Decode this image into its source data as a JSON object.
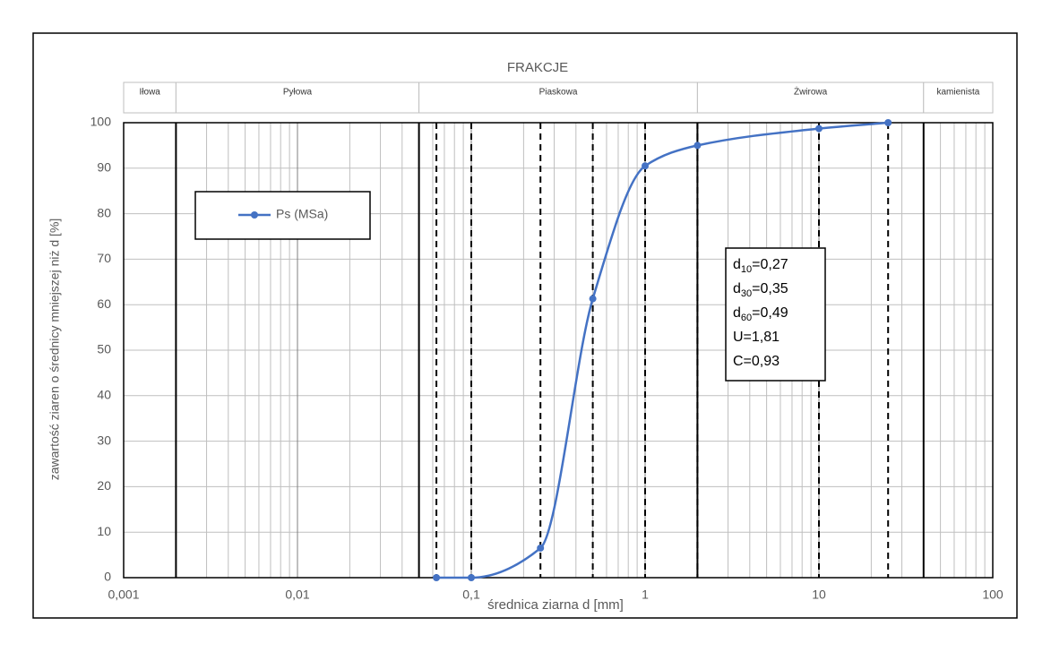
{
  "chart_data": {
    "type": "line",
    "x": [
      0.063,
      0.1,
      0.25,
      0.5,
      1,
      2,
      10,
      25
    ],
    "series": [
      {
        "name": "Ps (MSa)",
        "color": "#4472c4",
        "values": [
          0,
          0,
          6.5,
          61.3,
          90.5,
          95,
          98.7,
          100
        ]
      }
    ],
    "xlim": [
      0.001,
      100
    ],
    "log_x": true,
    "xticks": [
      {
        "value": 0.001,
        "label": "0,001"
      },
      {
        "value": 0.01,
        "label": "0,01"
      },
      {
        "value": 0.1,
        "label": "0,1"
      },
      1,
      10,
      100
    ],
    "ylim": [
      0,
      100
    ],
    "yticks": [
      0,
      10,
      20,
      30,
      40,
      50,
      60,
      70,
      80,
      90,
      100
    ],
    "grid": true,
    "xlabel": "średnica ziarna d [mm]",
    "ylabel": "zawartość ziaren o średnicy mniejszej niż d [%]",
    "fractions": {
      "title": "FRAKCJE",
      "names": [
        "Iłowa",
        "Pyłowa",
        "Piaskowa",
        "Żwirowa",
        "kamienista"
      ],
      "boundaries": [
        0.002,
        0.05,
        2,
        40
      ]
    },
    "annotation": [
      {
        "base": "d",
        "sub": "10",
        "rest": "=0,27"
      },
      {
        "base": "d",
        "sub": "30",
        "rest": "=0,35"
      },
      {
        "base": "d",
        "sub": "60",
        "rest": "=0,49"
      },
      {
        "base": "U=1,81"
      },
      {
        "base": "C=0,93"
      }
    ]
  }
}
